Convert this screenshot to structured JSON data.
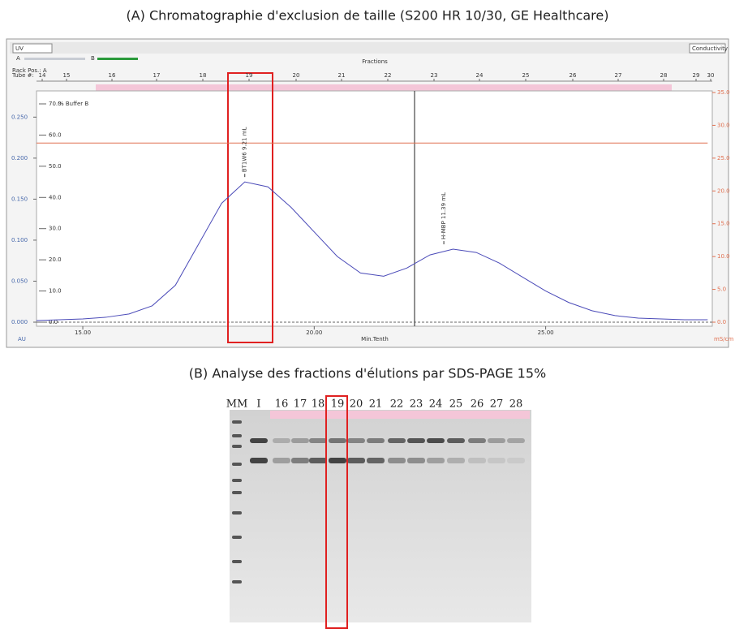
{
  "chart_data": {
    "type": "line",
    "title": "(A) Chromatographie d'exclusion de taille (S200 HR 10/30, GE Healthcare)",
    "x": [
      14,
      14.5,
      15,
      15.5,
      16,
      16.5,
      17,
      17.5,
      18,
      18.5,
      19,
      19.5,
      20,
      20.5,
      21,
      21.5,
      22,
      22.5,
      23,
      23.5,
      24,
      24.5,
      25,
      25.5,
      26,
      26.5,
      27,
      27.5,
      28,
      28.5
    ],
    "series": [
      {
        "name": "UV",
        "color": "#4a4ab8",
        "values": [
          0.002,
          0.003,
          0.004,
          0.006,
          0.01,
          0.02,
          0.045,
          0.095,
          0.145,
          0.171,
          0.165,
          0.14,
          0.11,
          0.08,
          0.06,
          0.056,
          0.066,
          0.082,
          0.089,
          0.085,
          0.072,
          0.055,
          0.038,
          0.024,
          0.014,
          0.008,
          0.005,
          0.004,
          0.003,
          0.003
        ]
      },
      {
        "name": "Conductivity",
        "color": "#e07050",
        "axis": "y2",
        "values": [
          27.3,
          27.3,
          27.3,
          27.3,
          27.3,
          27.3,
          27.3,
          27.3,
          27.3,
          27.3,
          27.3,
          27.3,
          27.3,
          27.3,
          27.3,
          27.3,
          27.3,
          27.3,
          27.3,
          27.3,
          27.3,
          27.3,
          27.3,
          27.3,
          27.3,
          27.3,
          27.3,
          27.3,
          27.3,
          27.3
        ]
      }
    ],
    "xlim": [
      14,
      28.6
    ],
    "xticks": [
      {
        "value": 15,
        "label": "15.00"
      },
      {
        "value": 20,
        "label": "20.00"
      },
      {
        "value": 25,
        "label": "25.00"
      }
    ],
    "ylim": [
      0,
      0.28
    ],
    "yticks": [
      {
        "value": 0,
        "label": "0.000"
      },
      {
        "value": 0.05,
        "label": "0.050"
      },
      {
        "value": 0.1,
        "label": "0.100"
      },
      {
        "value": 0.15,
        "label": "0.150"
      },
      {
        "value": 0.2,
        "label": "0.200"
      },
      {
        "value": 0.25,
        "label": "0.250"
      }
    ],
    "y2lim": [
      0,
      35
    ],
    "y2ticks": [
      {
        "value": 0,
        "label": "0.0"
      },
      {
        "value": 5,
        "label": "5.0"
      },
      {
        "value": 10,
        "label": "10.0"
      },
      {
        "value": 15,
        "label": "15.0"
      },
      {
        "value": 20,
        "label": "20.0"
      },
      {
        "value": 25,
        "label": "25.0"
      },
      {
        "value": 30,
        "label": "30.0"
      },
      {
        "value": 35,
        "label": "35.0"
      }
    ],
    "ylabel": "AU",
    "y2label": "mS/cm",
    "xlabel": "Min.Tenth",
    "buffer_b": {
      "label": "% Buffer B",
      "lim": [
        0,
        70
      ],
      "ticks": [
        {
          "value": 0,
          "label": "0.0"
        },
        {
          "value": 10,
          "label": "10.0"
        },
        {
          "value": 20,
          "label": "20.0"
        },
        {
          "value": 30,
          "label": "30.0"
        },
        {
          "value": 40,
          "label": "40.0"
        },
        {
          "value": 50,
          "label": "50.0"
        },
        {
          "value": 60,
          "label": "60.0"
        },
        {
          "value": 70,
          "label": "70.0"
        }
      ]
    },
    "annotations": [
      {
        "text": "BT1W6 9.21 mL",
        "x": 18.5,
        "y": 0.171
      },
      {
        "text": "H-MBP 11.39 mL",
        "x": 22.8,
        "y": 0.089
      }
    ],
    "legend": [
      "A",
      "B"
    ],
    "fractions_label": "Fractions",
    "rack_label": "Rack Pos.: A",
    "tube_label": "Tube #:",
    "fractions": [
      "14",
      "15",
      "16",
      "17",
      "18",
      "19",
      "20",
      "21",
      "22",
      "23",
      "24",
      "25",
      "26",
      "27",
      "28",
      "29",
      "30"
    ]
  },
  "gel": {
    "title": "(B) Analyse des fractions d'élutions par SDS-PAGE 15%",
    "lanes": [
      "MM",
      "I",
      "16",
      "17",
      "18",
      "19",
      "20",
      "21",
      "22",
      "23",
      "24",
      "25",
      "26",
      "27",
      "28"
    ]
  }
}
